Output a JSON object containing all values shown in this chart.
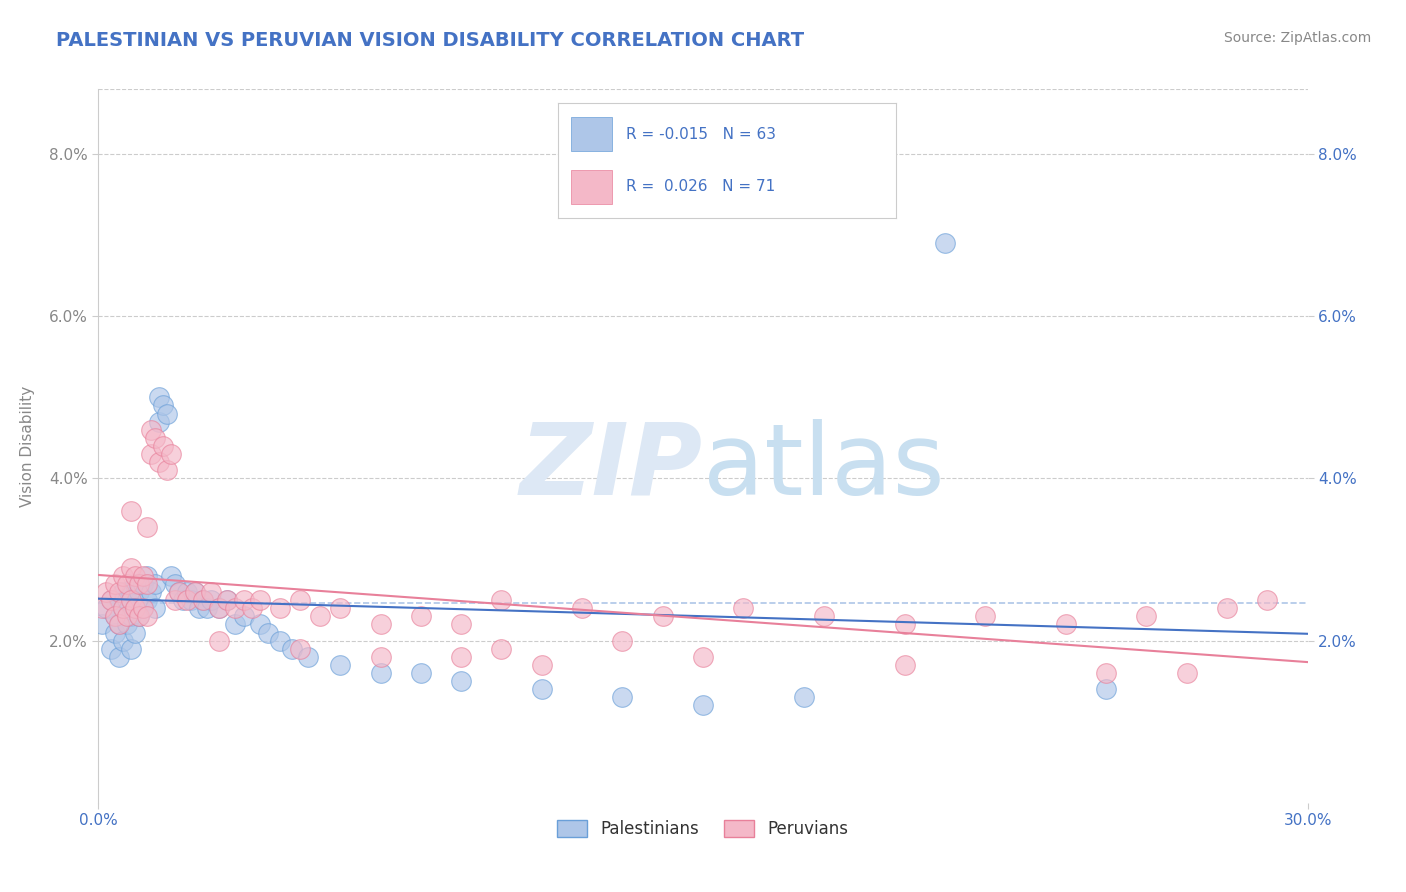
{
  "title": "PALESTINIAN VS PERUVIAN VISION DISABILITY CORRELATION CHART",
  "source": "Source: ZipAtlas.com",
  "ylabel": "Vision Disability",
  "xlim": [
    0.0,
    0.3
  ],
  "ylim": [
    0.0,
    0.088
  ],
  "xtick_positions": [
    0.0,
    0.3
  ],
  "xticklabels": [
    "0.0%",
    "30.0%"
  ],
  "yticks": [
    0.02,
    0.04,
    0.06,
    0.08
  ],
  "yticklabels": [
    "2.0%",
    "4.0%",
    "6.0%",
    "8.0%"
  ],
  "legend_entries": [
    {
      "label": "Palestinians",
      "R": -0.015,
      "N": 63,
      "color": "#aec6e8",
      "edge_color": "#6a9fd8"
    },
    {
      "label": "Peruvians",
      "R": 0.026,
      "N": 71,
      "color": "#f4b8c8",
      "edge_color": "#e8809a"
    }
  ],
  "title_color": "#4472c4",
  "title_fontsize": 14,
  "axis_label_color": "#888888",
  "tick_color": "#4472c4",
  "tick_fontsize": 11,
  "ylabel_fontsize": 11,
  "source_fontsize": 10,
  "source_color": "#888888",
  "background_color": "#ffffff",
  "grid_color": "#cccccc",
  "watermark_color": "#dde8f5",
  "watermark_fontsize": 72,
  "blue_line_color": "#4472c4",
  "pink_line_color": "#e8809a",
  "dashed_line_color": "#aec6e8",
  "blue_scatter": {
    "x": [
      0.001,
      0.002,
      0.003,
      0.003,
      0.004,
      0.004,
      0.005,
      0.005,
      0.005,
      0.006,
      0.006,
      0.006,
      0.007,
      0.007,
      0.008,
      0.008,
      0.008,
      0.009,
      0.009,
      0.009,
      0.01,
      0.01,
      0.011,
      0.011,
      0.012,
      0.012,
      0.013,
      0.014,
      0.014,
      0.015,
      0.015,
      0.016,
      0.017,
      0.018,
      0.019,
      0.02,
      0.021,
      0.022,
      0.023,
      0.024,
      0.025,
      0.026,
      0.027,
      0.028,
      0.03,
      0.032,
      0.034,
      0.036,
      0.04,
      0.042,
      0.045,
      0.048,
      0.052,
      0.06,
      0.07,
      0.08,
      0.09,
      0.11,
      0.13,
      0.15,
      0.175,
      0.21,
      0.25
    ],
    "y": [
      0.022,
      0.024,
      0.025,
      0.019,
      0.023,
      0.021,
      0.025,
      0.022,
      0.018,
      0.026,
      0.024,
      0.02,
      0.025,
      0.022,
      0.026,
      0.023,
      0.019,
      0.027,
      0.024,
      0.021,
      0.026,
      0.023,
      0.027,
      0.024,
      0.028,
      0.025,
      0.026,
      0.027,
      0.024,
      0.05,
      0.047,
      0.049,
      0.048,
      0.028,
      0.027,
      0.026,
      0.025,
      0.026,
      0.025,
      0.026,
      0.024,
      0.025,
      0.024,
      0.025,
      0.024,
      0.025,
      0.022,
      0.023,
      0.022,
      0.021,
      0.02,
      0.019,
      0.018,
      0.017,
      0.016,
      0.016,
      0.015,
      0.014,
      0.013,
      0.012,
      0.013,
      0.069,
      0.014
    ]
  },
  "pink_scatter": {
    "x": [
      0.001,
      0.002,
      0.003,
      0.004,
      0.004,
      0.005,
      0.005,
      0.006,
      0.006,
      0.007,
      0.007,
      0.008,
      0.008,
      0.009,
      0.009,
      0.01,
      0.01,
      0.011,
      0.011,
      0.012,
      0.012,
      0.013,
      0.013,
      0.014,
      0.015,
      0.016,
      0.017,
      0.018,
      0.019,
      0.02,
      0.022,
      0.024,
      0.026,
      0.028,
      0.03,
      0.032,
      0.034,
      0.036,
      0.038,
      0.04,
      0.045,
      0.05,
      0.055,
      0.06,
      0.07,
      0.08,
      0.09,
      0.1,
      0.12,
      0.14,
      0.16,
      0.18,
      0.2,
      0.22,
      0.24,
      0.26,
      0.28,
      0.29,
      0.008,
      0.012,
      0.1,
      0.15,
      0.2,
      0.25,
      0.27,
      0.13,
      0.03,
      0.05,
      0.07,
      0.09,
      0.11
    ],
    "y": [
      0.024,
      0.026,
      0.025,
      0.027,
      0.023,
      0.026,
      0.022,
      0.028,
      0.024,
      0.027,
      0.023,
      0.029,
      0.025,
      0.028,
      0.024,
      0.027,
      0.023,
      0.028,
      0.024,
      0.027,
      0.023,
      0.046,
      0.043,
      0.045,
      0.042,
      0.044,
      0.041,
      0.043,
      0.025,
      0.026,
      0.025,
      0.026,
      0.025,
      0.026,
      0.024,
      0.025,
      0.024,
      0.025,
      0.024,
      0.025,
      0.024,
      0.025,
      0.023,
      0.024,
      0.022,
      0.023,
      0.022,
      0.025,
      0.024,
      0.023,
      0.024,
      0.023,
      0.022,
      0.023,
      0.022,
      0.023,
      0.024,
      0.025,
      0.036,
      0.034,
      0.019,
      0.018,
      0.017,
      0.016,
      0.016,
      0.02,
      0.02,
      0.019,
      0.018,
      0.018,
      0.017
    ]
  }
}
